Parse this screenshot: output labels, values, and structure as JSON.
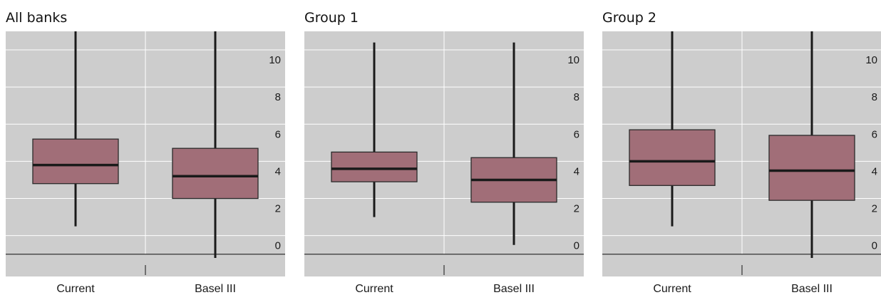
{
  "chart_data": [
    {
      "type": "boxplot",
      "title": "All banks",
      "categories": [
        "Current",
        "Basel III"
      ],
      "boxes": [
        {
          "whisker_low": 1.5,
          "q1": 3.8,
          "median": 4.8,
          "q3": 6.2,
          "whisker_high": 12.0
        },
        {
          "whisker_low": -0.2,
          "q1": 3.0,
          "median": 4.2,
          "q3": 5.7,
          "whisker_high": 12.0
        }
      ],
      "yticks": [
        0,
        2,
        4,
        6,
        8,
        10
      ],
      "ylim": [
        -1.2,
        12.0
      ],
      "grid": true
    },
    {
      "type": "boxplot",
      "title": "Group 1",
      "categories": [
        "Current",
        "Basel III"
      ],
      "boxes": [
        {
          "whisker_low": 2.0,
          "q1": 3.9,
          "median": 4.6,
          "q3": 5.5,
          "whisker_high": 11.4
        },
        {
          "whisker_low": 0.5,
          "q1": 2.8,
          "median": 4.0,
          "q3": 5.2,
          "whisker_high": 11.4
        }
      ],
      "yticks": [
        0,
        2,
        4,
        6,
        8,
        10
      ],
      "ylim": [
        -1.2,
        12.0
      ],
      "grid": true
    },
    {
      "type": "boxplot",
      "title": "Group 2",
      "categories": [
        "Current",
        "Basel III"
      ],
      "boxes": [
        {
          "whisker_low": 1.5,
          "q1": 3.7,
          "median": 5.0,
          "q3": 6.7,
          "whisker_high": 12.0
        },
        {
          "whisker_low": -0.2,
          "q1": 2.9,
          "median": 4.5,
          "q3": 6.4,
          "whisker_high": 12.0
        }
      ],
      "yticks": [
        0,
        2,
        4,
        6,
        8,
        10
      ],
      "ylim": [
        -1.2,
        12.0
      ],
      "grid": true
    }
  ],
  "colors": {
    "plot_background": "#cdcdcd",
    "gridline": "#ffffff",
    "box_fill": "#a16e78",
    "box_stroke": "#2a2a2a",
    "whisker": "#1a1a1a",
    "median": "#1a1a1a",
    "axis": "#333333"
  }
}
